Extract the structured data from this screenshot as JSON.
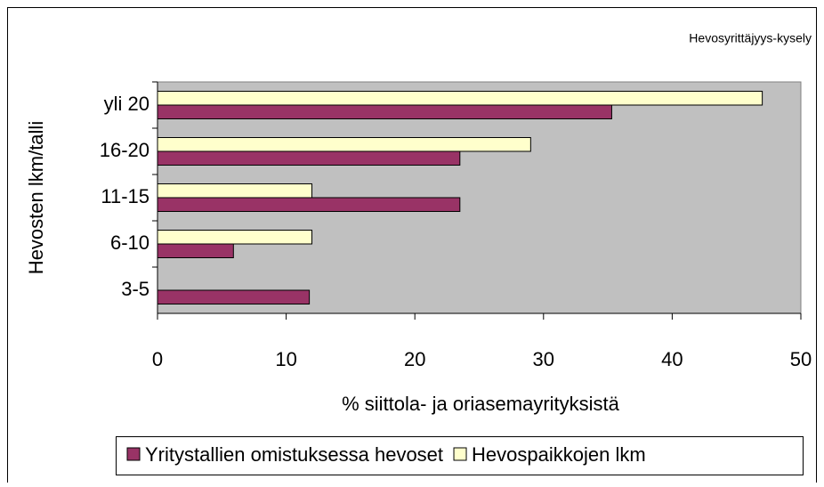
{
  "chart_data": {
    "type": "bar",
    "orientation": "horizontal",
    "title": "Hevosyrittäjyys-kysely",
    "x_label": "% siittola- ja oriasemayrityksistä",
    "y_label": "Hevosten lkm/talli",
    "categories": [
      "yli 20",
      "16-20",
      "11-15",
      "6-10",
      "3-5"
    ],
    "series": [
      {
        "name": "Yritystallien omistuksessa hevoset",
        "color": "#993366",
        "values": [
          35.3,
          23.5,
          23.5,
          5.9,
          11.8
        ]
      },
      {
        "name": "Hevospaikkojen lkm",
        "color": "#ffffcc",
        "values": [
          47,
          29,
          12,
          12,
          0
        ]
      }
    ],
    "xlim": [
      0,
      50
    ],
    "xticks": [
      0,
      10,
      20,
      30,
      40,
      50
    ],
    "grid": false,
    "plot_background": "#c0c0c0",
    "legend": "bottom"
  }
}
